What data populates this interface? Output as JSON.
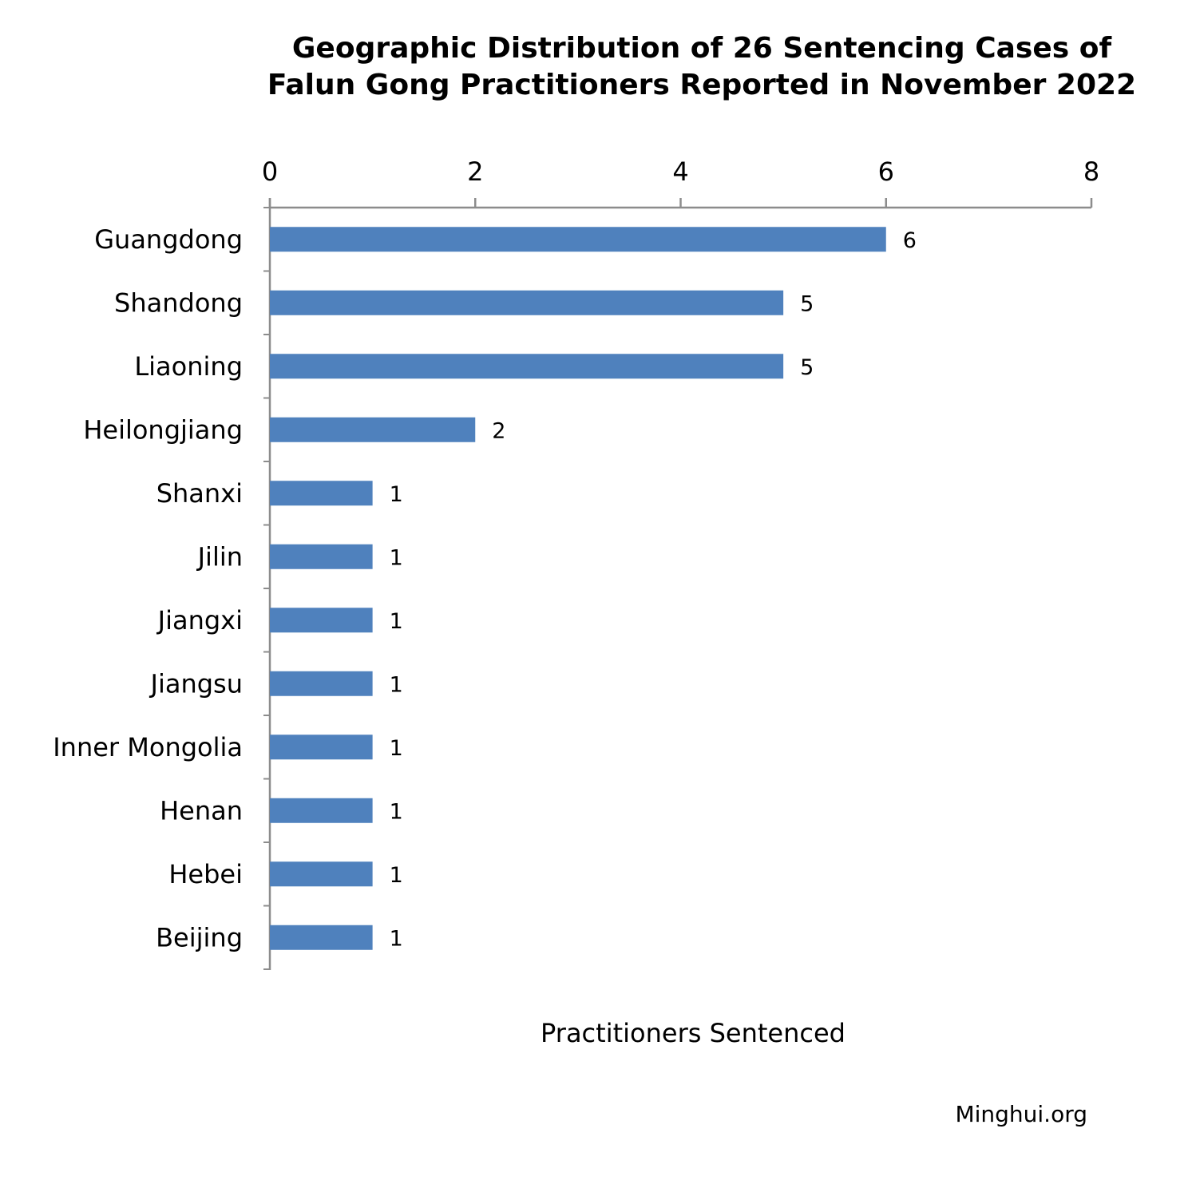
{
  "chart_data": {
    "type": "bar",
    "orientation": "horizontal",
    "title_lines": [
      "Geographic Distribution of 26 Sentencing Cases of",
      "Falun Gong Practitioners Reported in November 2022"
    ],
    "categories": [
      "Guangdong",
      "Shandong",
      "Liaoning",
      "Heilongjiang",
      "Shanxi",
      "Jilin",
      "Jiangxi",
      "Jiangsu",
      "Inner Mongolia",
      "Henan",
      "Hebei",
      "Beijing"
    ],
    "values": [
      6,
      5,
      5,
      2,
      1,
      1,
      1,
      1,
      1,
      1,
      1,
      1
    ],
    "xlabel": "Practitioners Sentenced",
    "ylabel": "",
    "xlim": [
      0,
      8
    ],
    "x_ticks": [
      0,
      2,
      4,
      6,
      8
    ],
    "x_axis_position": "top",
    "grid": false,
    "bar_color": "#4f81bd",
    "data_labels": true
  },
  "source": "Minghui.org"
}
